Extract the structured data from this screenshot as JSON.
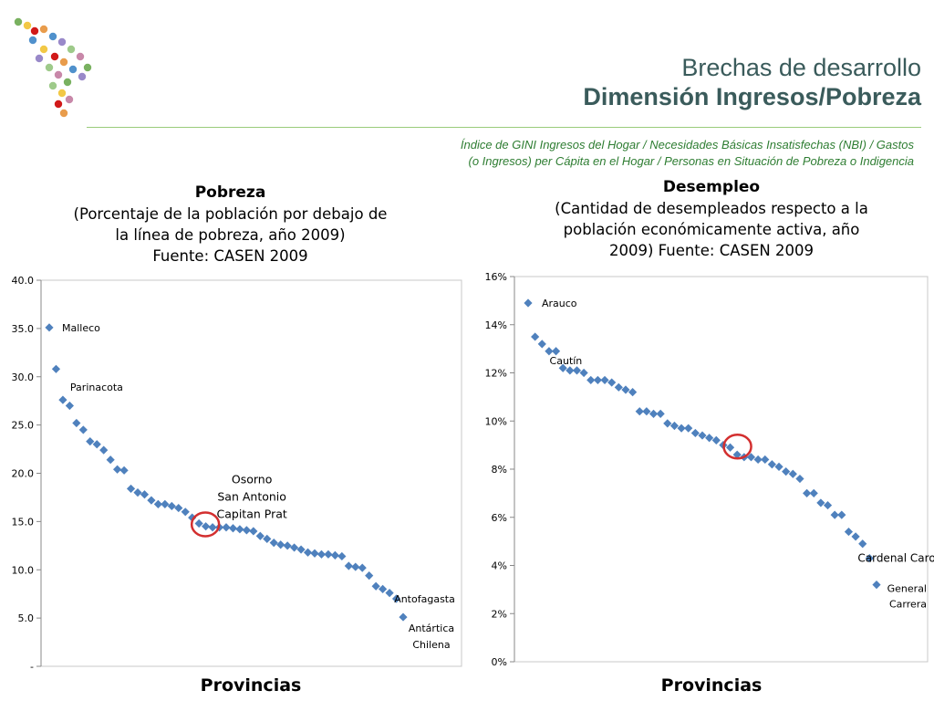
{
  "header": {
    "title_line1": "Brechas de desarrollo",
    "title_line2": "Dimensión Ingresos/Pobreza",
    "subtitle_line1": "Índice de GINI Ingresos del Hogar / Necesidades Básicas Insatisfechas (NBI) / Gastos",
    "subtitle_line2": "(o Ingresos) per Cápita en el Hogar / Personas en Situación de  Pobreza o Indigencia"
  },
  "logo": {
    "icon": "hands-map-logo",
    "colors": [
      "#6aa84f",
      "#f1c232",
      "#cc0000",
      "#e69138",
      "#3d85c6",
      "#8e7cc3",
      "#93c47d",
      "#c27ba0"
    ]
  },
  "colors": {
    "marker": "#4f81bd",
    "highlight_circle": "#d32f2f",
    "title": "#3a5b5b",
    "subtitle": "#2e7d32",
    "rule": "#9acb7a"
  },
  "chart_data": [
    {
      "type": "scatter",
      "title": "Pobreza",
      "subtitle_lines": [
        "(Porcentaje de la población por debajo de",
        "la línea de pobreza, año 2009)",
        "Fuente: CASEN 2009"
      ],
      "xlabel": "Provincias",
      "ylim": [
        0,
        40
      ],
      "yticks": [
        0,
        5,
        10,
        15,
        20,
        25,
        30,
        35,
        40
      ],
      "ytick_labels": [
        "-",
        "5.0",
        "10.0",
        "15.0",
        "20.0",
        "25.0",
        "30.0",
        "35.0",
        "40.0"
      ],
      "grid": false,
      "values": [
        35.1,
        30.8,
        27.6,
        27.0,
        25.2,
        24.5,
        23.3,
        23.0,
        22.4,
        21.4,
        20.4,
        20.3,
        18.4,
        18.0,
        17.8,
        17.2,
        16.8,
        16.8,
        16.6,
        16.4,
        16.0,
        15.4,
        14.8,
        14.5,
        14.4,
        14.4,
        14.4,
        14.3,
        14.2,
        14.1,
        14.0,
        13.5,
        13.2,
        12.8,
        12.6,
        12.5,
        12.3,
        12.1,
        11.8,
        11.7,
        11.6,
        11.6,
        11.5,
        11.4,
        10.4,
        10.3,
        10.2,
        9.4,
        8.3,
        8.0,
        7.6,
        7.0,
        5.1
      ],
      "annotations": [
        {
          "index": 0,
          "lines": [
            "Malleco"
          ]
        },
        {
          "index": 2,
          "lines": [
            "Parinacota"
          ]
        },
        {
          "index": 22,
          "lines": [
            "Osorno",
            "San Antonio",
            "Capitan Prat"
          ]
        },
        {
          "index": 51,
          "lines": [
            "Antofagasta"
          ]
        },
        {
          "index": 52,
          "lines": [
            "Antártica",
            "Chilena"
          ]
        }
      ],
      "highlight_index": 22
    },
    {
      "type": "scatter",
      "title": "Desempleo",
      "subtitle_lines": [
        "(Cantidad de desempleados respecto a la",
        "población económicamente activa, año",
        "2009) Fuente: CASEN 2009"
      ],
      "xlabel": "Provincias",
      "ylim": [
        0,
        16
      ],
      "yticks": [
        0,
        2,
        4,
        6,
        8,
        10,
        12,
        14,
        16
      ],
      "ytick_labels": [
        "0%",
        "2%",
        "4%",
        "6%",
        "8%",
        "10%",
        "12%",
        "14%",
        "16%"
      ],
      "grid": false,
      "values": [
        14.9,
        13.5,
        13.2,
        12.9,
        12.9,
        12.2,
        12.1,
        12.1,
        12.0,
        11.7,
        11.7,
        11.7,
        11.6,
        11.4,
        11.3,
        11.2,
        10.4,
        10.4,
        10.3,
        10.3,
        9.9,
        9.8,
        9.7,
        9.7,
        9.5,
        9.4,
        9.3,
        9.2,
        9.0,
        8.9,
        8.6,
        8.5,
        8.5,
        8.4,
        8.4,
        8.2,
        8.1,
        7.9,
        7.8,
        7.6,
        7.0,
        7.0,
        6.6,
        6.5,
        6.1,
        6.1,
        5.4,
        5.2,
        4.9,
        4.3,
        3.2
      ],
      "annotations": [
        {
          "index": 0,
          "lines": [
            "Arauco"
          ]
        },
        {
          "index": 4,
          "lines": [
            "Cautín"
          ]
        },
        {
          "index": 49,
          "lines": [
            "Cardenal Caro"
          ]
        },
        {
          "index": 50,
          "lines": [
            "General",
            "Carrera"
          ]
        }
      ],
      "highlight_index": 29
    }
  ]
}
